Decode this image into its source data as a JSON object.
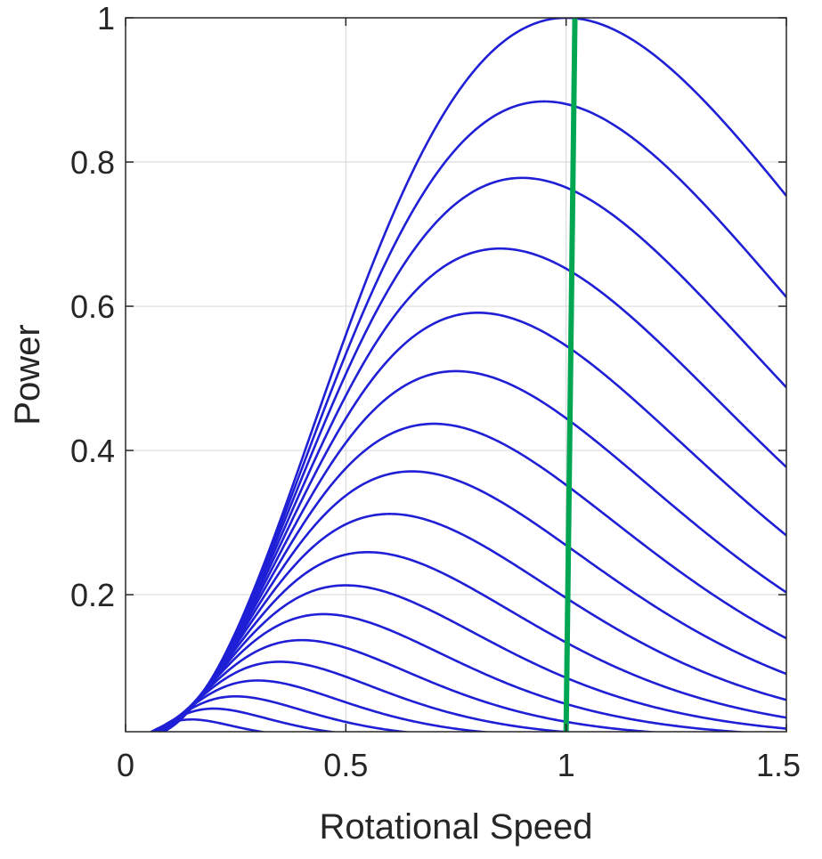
{
  "chart_data": {
    "type": "line",
    "title": "",
    "xlabel": "Rotational Speed",
    "ylabel": "Power",
    "xlim": [
      0,
      1.5
    ],
    "ylim": [
      0.01,
      1.0
    ],
    "xticks": [
      0,
      0.5,
      1,
      1.5
    ],
    "xtick_labels": [
      "0",
      "0.5",
      "1",
      "1.5"
    ],
    "yticks": [
      0.2,
      0.4,
      0.6,
      0.8,
      1.0
    ],
    "ytick_labels": [
      "0.2",
      "0.4",
      "0.6",
      "0.8",
      "1"
    ],
    "grid": true,
    "legend": "none",
    "colors": {
      "curves": "#1f1fd6",
      "operating_line": "#00a651",
      "axes": "#262626",
      "grid": "#dcdcdc"
    },
    "power_curve_family": {
      "description_note": "",
      "peak_points": [
        {
          "speed": 1.0,
          "power": 1.0
        },
        {
          "speed": 0.95,
          "power": 0.884
        },
        {
          "speed": 0.9,
          "power": 0.778
        },
        {
          "speed": 0.85,
          "power": 0.68
        },
        {
          "speed": 0.8,
          "power": 0.591
        },
        {
          "speed": 0.75,
          "power": 0.51
        },
        {
          "speed": 0.7,
          "power": 0.437
        },
        {
          "speed": 0.65,
          "power": 0.371
        },
        {
          "speed": 0.6,
          "power": 0.312
        },
        {
          "speed": 0.55,
          "power": 0.259
        },
        {
          "speed": 0.5,
          "power": 0.213
        },
        {
          "speed": 0.45,
          "power": 0.173
        },
        {
          "speed": 0.4,
          "power": 0.137
        },
        {
          "speed": 0.35,
          "power": 0.107
        },
        {
          "speed": 0.3,
          "power": 0.081
        },
        {
          "speed": 0.25,
          "power": 0.059
        },
        {
          "speed": 0.2,
          "power": 0.042
        },
        {
          "speed": 0.15,
          "power": 0.027
        }
      ]
    },
    "series": [
      {
        "name": "",
        "x": [
          1.0,
          1.02
        ],
        "y": [
          0.01,
          1.0
        ]
      }
    ]
  }
}
